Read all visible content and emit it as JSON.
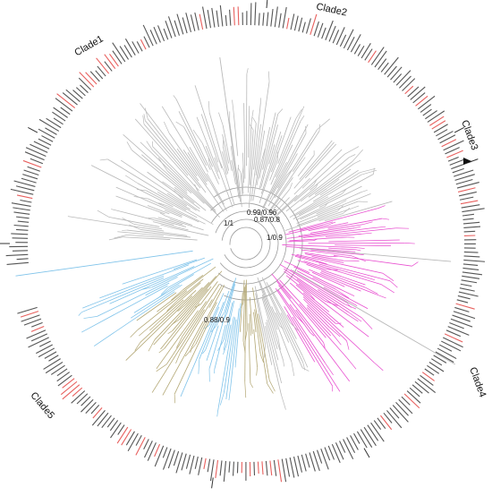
{
  "figure": {
    "type": "circular-phylogenetic-tree",
    "clades": [
      {
        "id": "clade1",
        "label": "Clade1"
      },
      {
        "id": "clade2",
        "label": "Clade2"
      },
      {
        "id": "clade3",
        "label": "Clade3"
      },
      {
        "id": "clade4",
        "label": "Clade4"
      },
      {
        "id": "clade5",
        "label": "Clade5"
      }
    ],
    "support_values": [
      {
        "id": "s1",
        "label": "1/1"
      },
      {
        "id": "s2",
        "label": "0.99/0.96"
      },
      {
        "id": "s3",
        "label": "0.87/0.8"
      },
      {
        "id": "s4",
        "label": "1/0.9"
      },
      {
        "id": "s5",
        "label": "0.88/0.9"
      }
    ],
    "branch_colors": {
      "default": "#b9b9b9",
      "clade4": "#e84fd0",
      "clade5_blue": "#7fc3ea",
      "clade5_olive": "#b3a774"
    },
    "tip_label_colors": {
      "default": "#555555",
      "highlighted": "#e8605e"
    }
  }
}
